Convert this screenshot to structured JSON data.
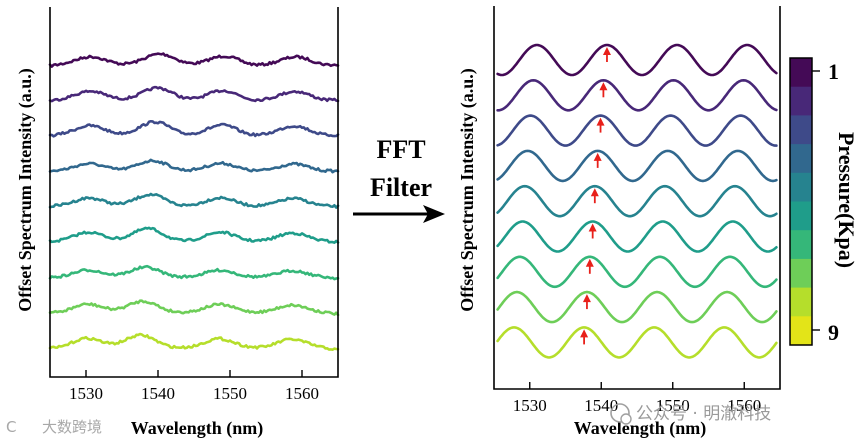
{
  "chart_data": [
    {
      "type": "line",
      "name": "raw-offset-spectra",
      "xlabel": "Wavelength (nm)",
      "ylabel": "Offset Spectrum Intensity (a.u.)",
      "xlim": [
        1525,
        1565
      ],
      "xticks": [
        1530,
        1540,
        1550,
        1560
      ],
      "series_count": 9,
      "peaks_nm": [
        1531,
        1540.5,
        1549.5,
        1559.5
      ],
      "noise": true
    },
    {
      "type": "line",
      "name": "fft-filtered-spectra",
      "xlabel": "Wavelength (nm)",
      "ylabel": "Offset Spectrum Intensity (a.u.)",
      "xlim": [
        1525,
        1565
      ],
      "xticks": [
        1530,
        1540,
        1550,
        1560
      ],
      "series_count": 9,
      "tracked_peak_nm": [
        1540.8,
        1540.3,
        1539.9,
        1539.5,
        1539.1,
        1538.8,
        1538.4,
        1538.0,
        1537.6
      ],
      "period_nm": 9.8
    }
  ],
  "annotation": {
    "line1": "FFT",
    "line2": "Filter"
  },
  "colorbar": {
    "title": "Pressure(Kpa)",
    "min_label": "1",
    "max_label": "9",
    "colors": [
      "#440a56",
      "#482878",
      "#3e4a89",
      "#31688e",
      "#26838f",
      "#1f9d8a",
      "#35b779",
      "#6ece58",
      "#b5de2b",
      "#e3e418"
    ]
  },
  "watermarks": {
    "right": "公众号 · 明澈科技",
    "left": "大数跨境"
  }
}
